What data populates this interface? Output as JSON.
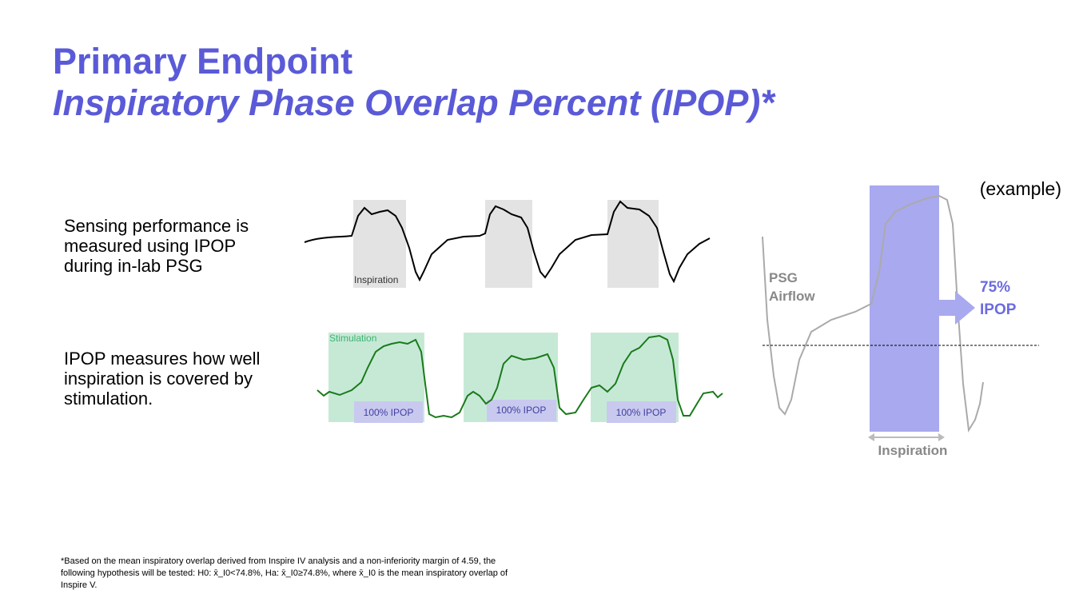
{
  "header": {
    "title": "Primary Endpoint",
    "subtitle": "Inspiratory Phase Overlap Percent (IPOP)*"
  },
  "bullets": [
    {
      "lines": [
        "Sensing performance is",
        "measured using IPOP",
        "during in-lab PSG"
      ]
    },
    {
      "lines": [
        "IPOP measures how well",
        "inspiration is covered by",
        "stimulation."
      ]
    }
  ],
  "waveforms": {
    "inspiration_label": "Inspiration",
    "stimulation_label": "Stimulation",
    "ipop_labels": [
      "100% IPOP",
      "100% IPOP",
      "100% IPOP"
    ]
  },
  "example": {
    "tag": "(example)",
    "signal_label": [
      "PSG",
      "Airflow"
    ],
    "result": [
      "75%",
      "IPOP"
    ],
    "span_label": "Inspiration"
  },
  "footnote": [
    "*Based on the mean inspiratory overlap derived from Inspire IV analysis and a non-inferiority margin of 4.59, the",
    "following hypothesis will be tested: H0: x̄_I0<74.8%,  Ha: x̄_I0≥74.8%, where x̄_I0 is the mean inspiratory overlap of",
    "Inspire V."
  ]
}
